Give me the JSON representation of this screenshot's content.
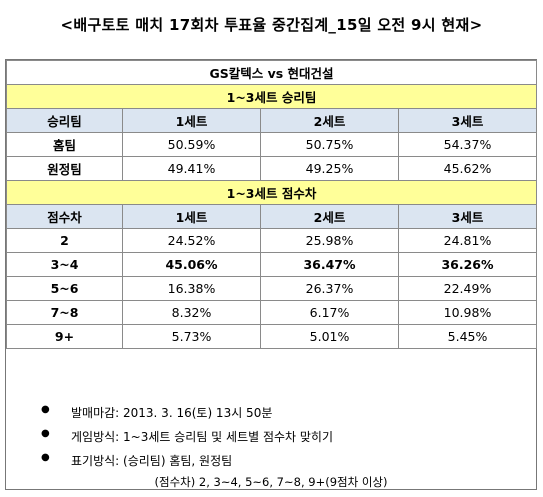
{
  "title": "<배구토토 매치 17회차 투표율 중간집계_15일 오전 9시 현재>",
  "match": "GS칼텍스 vs 현대건설",
  "section1": {
    "title": "1~3세트 승리팀",
    "header": [
      "승리팀",
      "1세트",
      "2세트",
      "3세트"
    ],
    "rows": [
      {
        "label": "홈팀",
        "values": [
          "50.59%",
          "50.75%",
          "54.37%"
        ]
      },
      {
        "label": "원정팀",
        "values": [
          "49.41%",
          "49.25%",
          "45.62%"
        ]
      }
    ]
  },
  "section2": {
    "title": "1~3세트 점수차",
    "header": [
      "점수차",
      "1세트",
      "2세트",
      "3세트"
    ],
    "rows": [
      {
        "label": "2",
        "values": [
          "24.52%",
          "25.98%",
          "24.81%"
        ]
      },
      {
        "label": "3~4",
        "values": [
          "45.06%",
          "36.47%",
          "36.26%"
        ]
      },
      {
        "label": "5~6",
        "values": [
          "16.38%",
          "26.37%",
          "22.49%"
        ]
      },
      {
        "label": "7~8",
        "values": [
          "8.32%",
          "6.17%",
          "10.98%"
        ]
      },
      {
        "label": "9+",
        "values": [
          "5.73%",
          "5.01%",
          "5.45%"
        ]
      }
    ]
  },
  "notes": [
    "발매마감: 2013. 3. 16(토) 13시 50분",
    "게임방식: 1~3세트 승리팀 및 세트별 점수차 맞히기",
    "표기방식: (승리팀) 홈팀, 원정팀"
  ],
  "notes_continuation": "(점수차) 2, 3~4, 5~6, 7~8, 9+(9점차 이상)",
  "bullet_symbol": "●"
}
